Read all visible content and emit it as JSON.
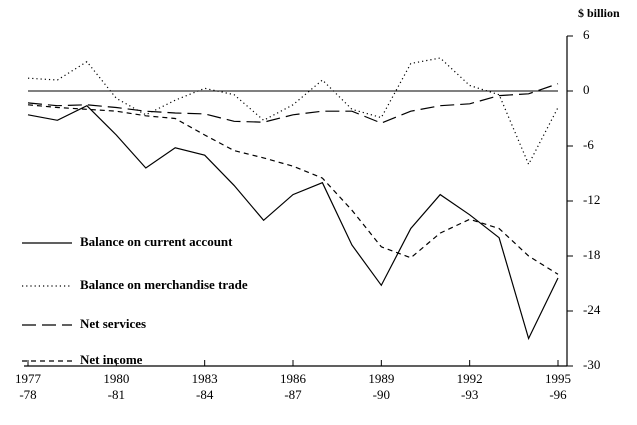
{
  "chart_data": {
    "type": "line",
    "y_axis_label": "$ billion",
    "categories": [
      [
        "1977",
        "-78"
      ],
      null,
      null,
      [
        "1980",
        "-81"
      ],
      null,
      null,
      [
        "1983",
        "-84"
      ],
      null,
      null,
      [
        "1986",
        "-87"
      ],
      null,
      null,
      [
        "1989",
        "-90"
      ],
      null,
      null,
      [
        "1992",
        "-93"
      ],
      null,
      null,
      [
        "1995",
        "-96"
      ]
    ],
    "ylim": [
      -30,
      6
    ],
    "yticks": [
      6,
      0,
      -6,
      -12,
      -18,
      -24,
      -30
    ],
    "zero_line": true,
    "series": [
      {
        "name": "Balance on current account",
        "color": "#000000",
        "dash": "solid",
        "values": [
          -2.6,
          -3.2,
          -1.6,
          -4.8,
          -8.4,
          -6.2,
          -7.0,
          -10.3,
          -14.1,
          -11.3,
          -10.0,
          -16.8,
          -21.2,
          -15.0,
          -11.3,
          -13.5,
          -16.0,
          -27.0,
          -20.4
        ]
      },
      {
        "name": "Balance on merchandise trade",
        "color": "#000000",
        "dash": "dotted",
        "values": [
          1.4,
          1.2,
          3.2,
          -0.8,
          -2.6,
          -1.0,
          0.3,
          -0.4,
          -3.2,
          -1.5,
          1.2,
          -2.0,
          -2.9,
          3.0,
          3.6,
          0.6,
          -0.4,
          -8.0,
          -1.8
        ]
      },
      {
        "name": "Net services",
        "color": "#000000",
        "dash": "long-dash",
        "values": [
          -1.3,
          -1.6,
          -1.5,
          -1.8,
          -2.2,
          -2.4,
          -2.5,
          -3.3,
          -3.4,
          -2.6,
          -2.2,
          -2.2,
          -3.5,
          -2.2,
          -1.6,
          -1.4,
          -0.5,
          -0.3,
          0.8
        ]
      },
      {
        "name": "Net income",
        "color": "#000000",
        "dash": "short-dash",
        "values": [
          -1.5,
          -1.8,
          -2.0,
          -2.2,
          -2.7,
          -3.0,
          -4.8,
          -6.5,
          -7.3,
          -8.2,
          -9.5,
          -13.0,
          -17.0,
          -18.2,
          -15.5,
          -14.0,
          -15.0,
          -18.0,
          -20.0
        ]
      }
    ]
  }
}
